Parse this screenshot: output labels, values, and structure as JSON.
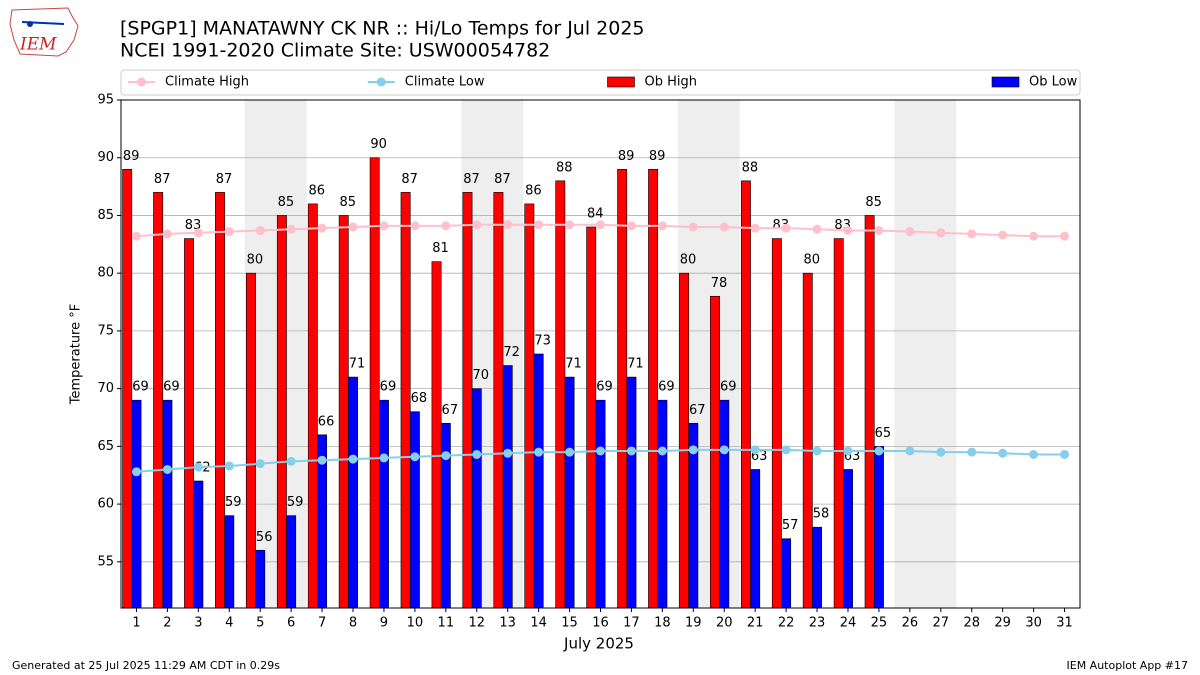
{
  "logo_text": "IEM",
  "footer_left": "Generated at 25 Jul 2025 11:29 AM CDT in 0.29s",
  "footer_right": "IEM Autoplot App #17",
  "chart_data": {
    "type": "bar",
    "title": "[SPGP1] MANATAWNY CK NR :: Hi/Lo Temps for Jul 2025",
    "subtitle": "NCEI 1991-2020 Climate Site: USW00054782",
    "x_label": "July 2025",
    "y_label": "Temperature °F",
    "x": [
      1,
      2,
      3,
      4,
      5,
      6,
      7,
      8,
      9,
      10,
      11,
      12,
      13,
      14,
      15,
      16,
      17,
      18,
      19,
      20,
      21,
      22,
      23,
      24,
      25,
      26,
      27,
      28,
      29,
      30,
      31
    ],
    "xlim": [
      0.5,
      31.5
    ],
    "xticks": [
      1,
      2,
      3,
      4,
      5,
      6,
      7,
      8,
      9,
      10,
      11,
      12,
      13,
      14,
      15,
      16,
      17,
      18,
      19,
      20,
      21,
      22,
      23,
      24,
      25,
      26,
      27,
      28,
      29,
      30,
      31
    ],
    "ylim": [
      51,
      95
    ],
    "yticks": [
      55,
      60,
      65,
      70,
      75,
      80,
      85,
      90,
      95
    ],
    "grid": "y",
    "weekend_spans": [
      [
        4.5,
        6.5
      ],
      [
        11.5,
        13.5
      ],
      [
        18.5,
        20.5
      ],
      [
        25.5,
        27.5
      ]
    ],
    "shade_color": "#eeeeee",
    "legend": "top",
    "series": [
      {
        "name": "Climate High",
        "type": "line",
        "color": "#ffc0cb",
        "values": [
          83.2,
          83.4,
          83.5,
          83.6,
          83.7,
          83.8,
          83.9,
          84.0,
          84.1,
          84.1,
          84.1,
          84.2,
          84.2,
          84.2,
          84.2,
          84.2,
          84.1,
          84.1,
          84.0,
          84.0,
          83.9,
          83.9,
          83.8,
          83.7,
          83.7,
          83.6,
          83.5,
          83.4,
          83.3,
          83.2,
          83.2
        ]
      },
      {
        "name": "Climate Low",
        "type": "line",
        "color": "#87ceeb",
        "values": [
          62.8,
          63.0,
          63.2,
          63.3,
          63.5,
          63.7,
          63.8,
          63.9,
          64.0,
          64.1,
          64.2,
          64.3,
          64.4,
          64.5,
          64.5,
          64.6,
          64.6,
          64.6,
          64.7,
          64.7,
          64.7,
          64.7,
          64.6,
          64.6,
          64.6,
          64.6,
          64.5,
          64.5,
          64.4,
          64.3,
          64.3
        ]
      },
      {
        "name": "Ob High",
        "type": "bar",
        "color": "#ff0000",
        "offset": -0.3,
        "values": [
          89,
          87,
          83,
          87,
          80,
          85,
          86,
          85,
          90,
          87,
          81,
          87,
          87,
          86,
          88,
          84,
          89,
          89,
          80,
          78,
          88,
          83,
          80,
          83,
          85,
          null,
          null,
          null,
          null,
          null,
          null
        ]
      },
      {
        "name": "Ob Low",
        "type": "bar",
        "color": "#0000ff",
        "offset": 0,
        "values": [
          69,
          69,
          62,
          59,
          56,
          59,
          66,
          71,
          69,
          68,
          67,
          70,
          72,
          73,
          71,
          69,
          71,
          69,
          67,
          69,
          63,
          57,
          58,
          63,
          65,
          null,
          null,
          null,
          null,
          null,
          null
        ]
      }
    ]
  }
}
